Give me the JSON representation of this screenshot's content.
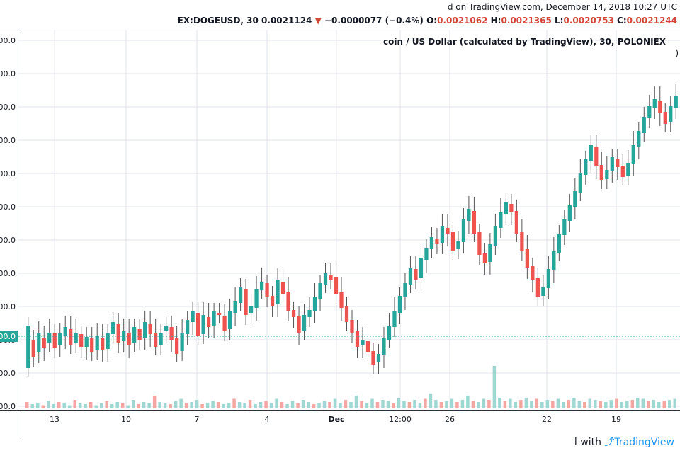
{
  "header": {
    "published": "d on TradingView.com, December 14, 2018 10:27 UTC",
    "symbol": "EX:DOGEUSD, 30",
    "last": "0.0021124",
    "change": "−0.0000077 (−0.4%)",
    "o_label": "O:",
    "o_value": "0.0021062",
    "h_label": "H:",
    "h_value": "0.0021365",
    "l_label": "L:",
    "l_value": "0.0020753",
    "c_label": "C:",
    "c_value": "0.0021244"
  },
  "panel": {
    "title": "coin / US Dollar (calculated by TradingView), 30, POLONIEX",
    "subtitle": ")"
  },
  "footer": {
    "prefix": "l with ",
    "brand": "TradingView"
  },
  "colors": {
    "up": "#26a69a",
    "down": "#ef5350",
    "grid": "#e0e3eb",
    "price_line": "#26a69a"
  },
  "chart_data": {
    "type": "candlestick",
    "ylabels": [
      "00.0",
      "00.0",
      "00.0",
      "00.0",
      "00.0",
      "00.0",
      "00.0",
      "00.0",
      "00.0",
      "00.0",
      "00.0",
      "00.0"
    ],
    "price_tag": "00.0",
    "xlabels": [
      "13",
      "10",
      "7",
      "4",
      "Dec",
      "12:00",
      "26",
      "22",
      "19"
    ],
    "candles": [
      [
        520,
        460
      ],
      [
        480,
        505
      ],
      [
        497,
        470
      ],
      [
        478,
        492
      ],
      [
        485,
        470
      ],
      [
        470,
        492
      ],
      [
        488,
        470
      ],
      [
        475,
        462
      ],
      [
        465,
        488
      ],
      [
        485,
        470
      ],
      [
        472,
        490
      ],
      [
        490,
        476
      ],
      [
        478,
        498
      ],
      [
        495,
        475
      ],
      [
        478,
        495
      ],
      [
        493,
        470
      ],
      [
        472,
        455
      ],
      [
        458,
        485
      ],
      [
        482,
        468
      ],
      [
        470,
        488
      ],
      [
        485,
        462
      ],
      [
        465,
        480
      ],
      [
        478,
        455
      ],
      [
        458,
        472
      ],
      [
        470,
        490
      ],
      [
        488,
        470
      ],
      [
        468,
        460
      ],
      [
        462,
        480
      ],
      [
        478,
        500
      ],
      [
        496,
        470
      ],
      [
        472,
        452
      ],
      [
        455,
        440
      ],
      [
        442,
        475
      ],
      [
        472,
        445
      ],
      [
        448,
        462
      ],
      [
        460,
        440
      ],
      [
        442,
        445
      ],
      [
        446,
        468
      ],
      [
        465,
        440
      ],
      [
        442,
        425
      ],
      [
        428,
        405
      ],
      [
        408,
        445
      ],
      [
        442,
        432
      ],
      [
        435,
        408
      ],
      [
        410,
        398
      ],
      [
        400,
        420
      ],
      [
        418,
        432
      ],
      [
        430,
        395
      ],
      [
        398,
        415
      ],
      [
        412,
        440
      ],
      [
        438,
        448
      ],
      [
        446,
        470
      ],
      [
        468,
        445
      ],
      [
        448,
        438
      ],
      [
        440,
        420
      ],
      [
        422,
        400
      ],
      [
        402,
        385
      ],
      [
        388,
        395
      ],
      [
        392,
        415
      ],
      [
        412,
        435
      ],
      [
        432,
        455
      ],
      [
        452,
        470
      ],
      [
        468,
        490
      ],
      [
        488,
        480
      ],
      [
        482,
        498
      ],
      [
        496,
        515
      ],
      [
        512,
        500
      ],
      [
        502,
        478
      ],
      [
        480,
        460
      ],
      [
        462,
        440
      ],
      [
        442,
        418
      ],
      [
        420,
        400
      ],
      [
        402,
        378
      ],
      [
        380,
        395
      ],
      [
        393,
        365
      ],
      [
        368,
        350
      ],
      [
        352,
        335
      ],
      [
        338,
        345
      ],
      [
        343,
        320
      ],
      [
        322,
        330
      ],
      [
        328,
        355
      ],
      [
        352,
        340
      ],
      [
        342,
        310
      ],
      [
        312,
        295
      ],
      [
        298,
        330
      ],
      [
        328,
        360
      ],
      [
        358,
        372
      ],
      [
        370,
        345
      ],
      [
        348,
        320
      ],
      [
        322,
        300
      ],
      [
        302,
        285
      ],
      [
        288,
        300
      ],
      [
        298,
        330
      ],
      [
        328,
        355
      ],
      [
        352,
        378
      ],
      [
        376,
        395
      ],
      [
        393,
        420
      ],
      [
        418,
        405
      ],
      [
        407,
        380
      ],
      [
        382,
        355
      ],
      [
        357,
        330
      ],
      [
        332,
        310
      ],
      [
        312,
        290
      ],
      [
        292,
        270
      ],
      [
        272,
        245
      ],
      [
        247,
        225
      ],
      [
        228,
        205
      ],
      [
        207,
        235
      ],
      [
        233,
        255
      ],
      [
        253,
        240
      ],
      [
        242,
        222
      ],
      [
        224,
        236
      ],
      [
        234,
        250
      ],
      [
        248,
        230
      ],
      [
        232,
        205
      ],
      [
        207,
        185
      ],
      [
        188,
        165
      ],
      [
        167,
        150
      ],
      [
        152,
        140
      ],
      [
        142,
        160
      ],
      [
        158,
        175
      ],
      [
        173,
        150
      ],
      [
        152,
        135
      ]
    ],
    "volumes": [
      6,
      4,
      5,
      3,
      7,
      4,
      6,
      5,
      3,
      8,
      5,
      4,
      6,
      3,
      5,
      7,
      4,
      6,
      5,
      3,
      8,
      4,
      6,
      5,
      12,
      6,
      5,
      4,
      7,
      9,
      5,
      6,
      8,
      4,
      5,
      7,
      6,
      4,
      5,
      9,
      6,
      5,
      8,
      4,
      6,
      7,
      5,
      9,
      6,
      4,
      7,
      5,
      8,
      6,
      4,
      5,
      7,
      6,
      9,
      5,
      8,
      6,
      12,
      7,
      5,
      9,
      6,
      8,
      7,
      5,
      10,
      7,
      6,
      8,
      5,
      9,
      14,
      8,
      6,
      7,
      9,
      6,
      8,
      12,
      7,
      6,
      9,
      8,
      40,
      10,
      7,
      9,
      6,
      8,
      10,
      7,
      9,
      6,
      8,
      7,
      9,
      6,
      8,
      10,
      7,
      6,
      9,
      8,
      7,
      6,
      8,
      9,
      6,
      7,
      8,
      10,
      9,
      7,
      8,
      6,
      7,
      8,
      9
    ]
  }
}
